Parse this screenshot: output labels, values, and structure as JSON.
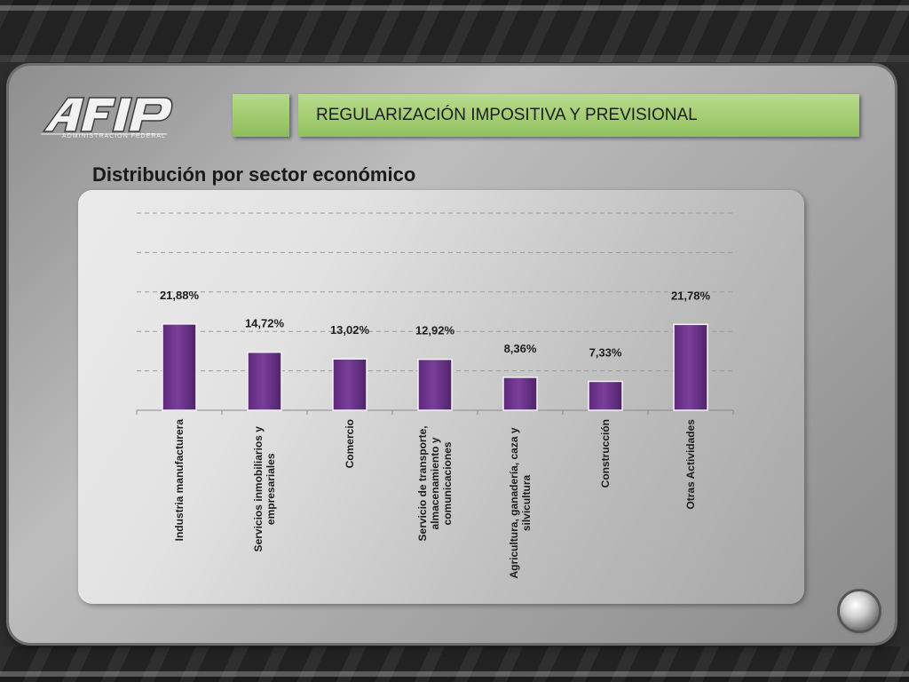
{
  "header": {
    "logo_text": "AFIP",
    "logo_subtext": "ADMINISTRACION FEDERAL",
    "title": "REGULARIZACIÓN IMPOSITIVA Y PREVISIONAL"
  },
  "slide": {
    "subtitle": "Distribución por sector económico"
  },
  "colors": {
    "bar": "#7b3f9a",
    "accent_green": "#a6cf78",
    "panel": "#b0b0b0"
  },
  "chart_data": {
    "type": "bar",
    "title": "",
    "xlabel": "",
    "ylabel": "",
    "grid": true,
    "ylim": [
      0,
      50
    ],
    "categories": [
      "Industria manufacturera",
      "Servicios inmobiliarios y empresariales",
      "Comercio",
      "Servicio de transporte, almacenamiento y comunicaciones",
      "Agricultura, ganadería, caza y silvicultura",
      "Construcción",
      "Otras Actividades"
    ],
    "category_lines": [
      [
        "Industria manufacturera"
      ],
      [
        "Servicios inmobiliarios y",
        "empresariales"
      ],
      [
        "Comercio"
      ],
      [
        "Servicio de transporte,",
        "almacenamiento y",
        "comunicaciones"
      ],
      [
        "Agricultura, ganadería, caza y",
        "silvicultura"
      ],
      [
        "Construcción"
      ],
      [
        "Otras Actividades"
      ]
    ],
    "values": [
      21.88,
      14.72,
      13.02,
      12.92,
      8.36,
      7.33,
      21.78
    ],
    "data_labels": [
      "21,88%",
      "14,72%",
      "13,02%",
      "12,92%",
      "8,36%",
      "7,33%",
      "21,78%"
    ]
  }
}
